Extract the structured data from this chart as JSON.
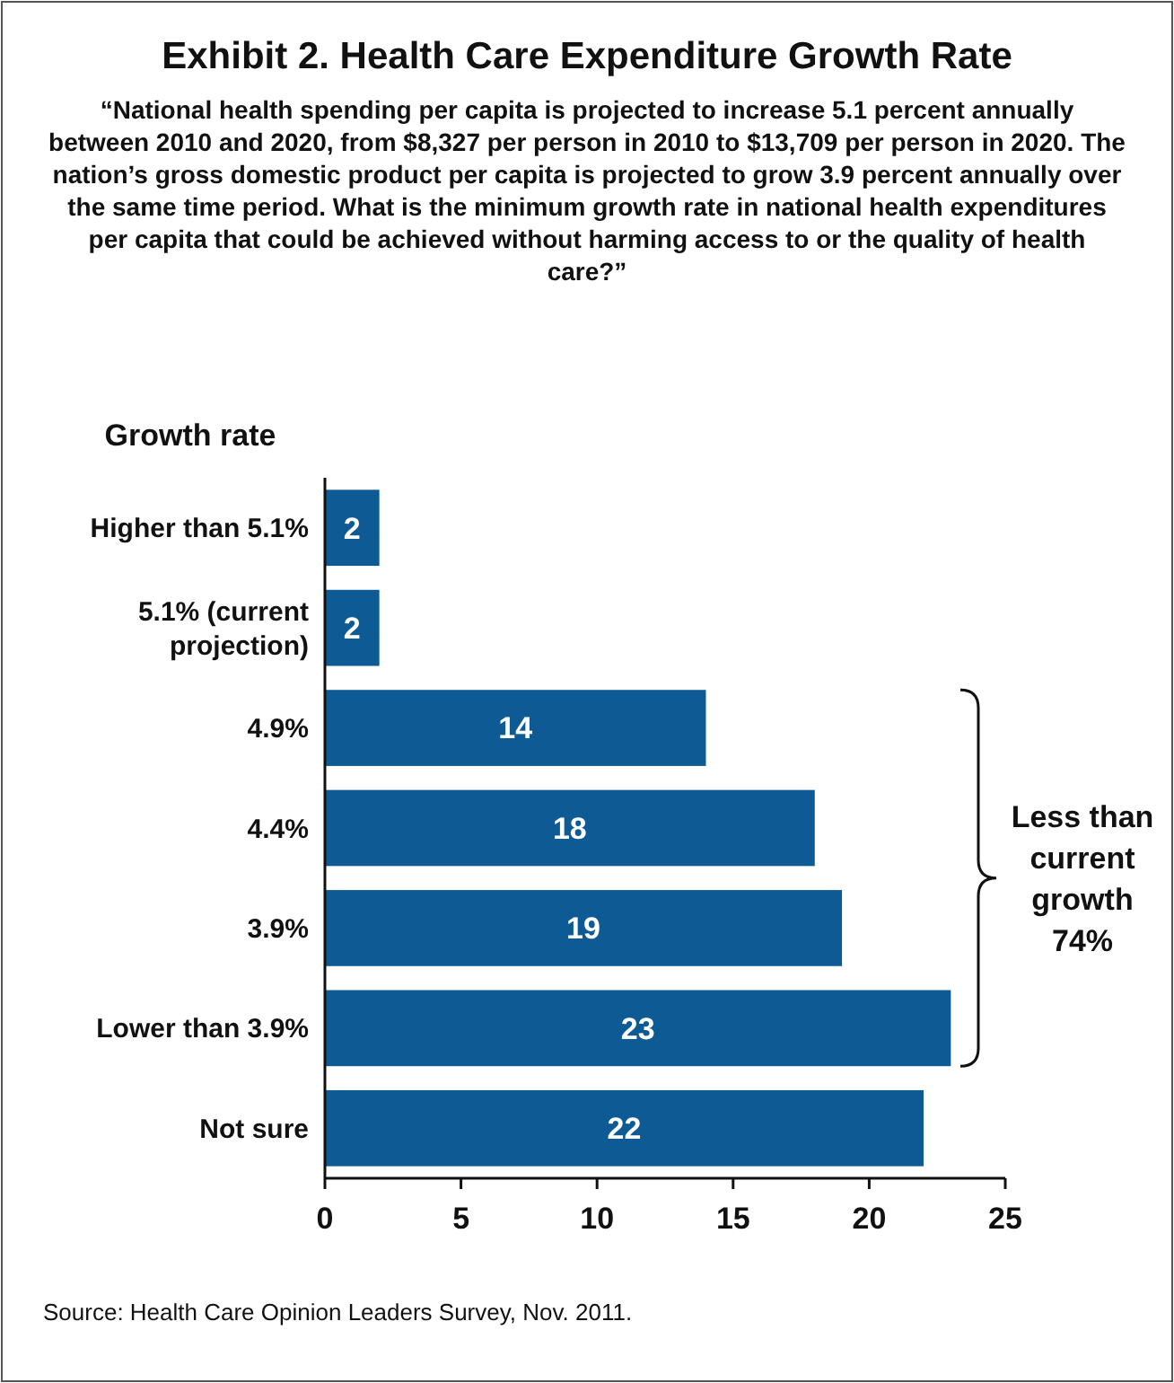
{
  "chart_data": {
    "type": "bar",
    "orientation": "horizontal",
    "title": "Exhibit 2. Health Care Expenditure Growth Rate",
    "subtitle": "“National health spending per capita is projected to increase 5.1 percent annually between 2010 and 2020, from $8,327 per person in 2010 to $13,709 per person in 2020. The nation’s gross domestic product per capita is projected to grow 3.9 percent annually over the same time period. What is the minimum growth rate in national health expenditures per capita that could be achieved without harming access to or the quality of health care?”",
    "ylabel": "Growth rate",
    "categories": [
      "Higher than 5.1%",
      "5.1% (current projection)",
      "4.9%",
      "4.4%",
      "3.9%",
      "Lower than 3.9%",
      "Not sure"
    ],
    "values": [
      2,
      2,
      14,
      18,
      19,
      23,
      22
    ],
    "color": "#0e5a95",
    "data_labels": true,
    "xlim": [
      0,
      25
    ],
    "xticks": [
      0,
      5,
      10,
      15,
      20,
      25
    ],
    "grid": false,
    "annotations": [
      "Less than current growth 74%",
      "Source: Health Care Opinion Leaders Survey, Nov. 2011."
    ]
  }
}
